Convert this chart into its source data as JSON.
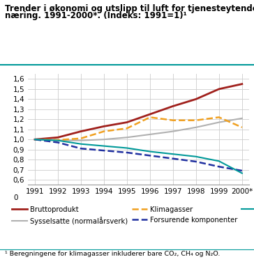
{
  "title_line1": "Trender i økonomi og utslipp til luft for tjenesteytende",
  "title_line2": "næring. 1991-2000*. (Indeks: 1991=1)¹",
  "footnote": "¹ Beregningene for klimagasser inkluderer bare CO₂, CH₄ og N₂O.",
  "year_labels": [
    "1991",
    "1992",
    "1993",
    "1994",
    "1995",
    "1996",
    "1997",
    "1998",
    "1999",
    "2000*"
  ],
  "series": {
    "Bruttoprodukt": {
      "values": [
        1.0,
        1.02,
        1.08,
        1.13,
        1.17,
        1.25,
        1.33,
        1.4,
        1.5,
        1.55
      ],
      "color": "#a0201c",
      "linestyle": "-",
      "linewidth": 2.0
    },
    "Sysselsatte (normalårsverk)": {
      "values": [
        1.0,
        0.99,
        0.99,
        1.0,
        1.02,
        1.05,
        1.08,
        1.12,
        1.17,
        1.21
      ],
      "color": "#b0b0b0",
      "linestyle": "-",
      "linewidth": 1.5
    },
    "Klimagasser": {
      "values": [
        1.0,
        0.995,
        1.01,
        1.08,
        1.11,
        1.22,
        1.19,
        1.19,
        1.22,
        1.12
      ],
      "color": "#f0a020",
      "linestyle": "--",
      "linewidth": 1.8
    },
    "Forsurende komponenter": {
      "values": [
        1.0,
        0.97,
        0.91,
        0.89,
        0.87,
        0.84,
        0.81,
        0.78,
        0.73,
        0.69
      ],
      "color": "#2030a0",
      "linestyle": "--",
      "linewidth": 1.8
    },
    "Danning av bakkenær ozon": {
      "values": [
        1.0,
        0.99,
        0.955,
        0.935,
        0.915,
        0.88,
        0.855,
        0.83,
        0.785,
        0.665
      ],
      "color": "#009999",
      "linestyle": "-",
      "linewidth": 1.5
    }
  },
  "ylim": [
    0.55,
    1.65
  ],
  "yticks": [
    0.6,
    0.7,
    0.8,
    0.9,
    1.0,
    1.1,
    1.2,
    1.3,
    1.4,
    1.5,
    1.6
  ],
  "background_color": "#ffffff",
  "grid_color": "#cccccc",
  "teal_line_color": "#009999",
  "title_fontsize": 8.5,
  "tick_fontsize": 7.5,
  "legend_fontsize": 7.2,
  "footnote_fontsize": 6.8
}
